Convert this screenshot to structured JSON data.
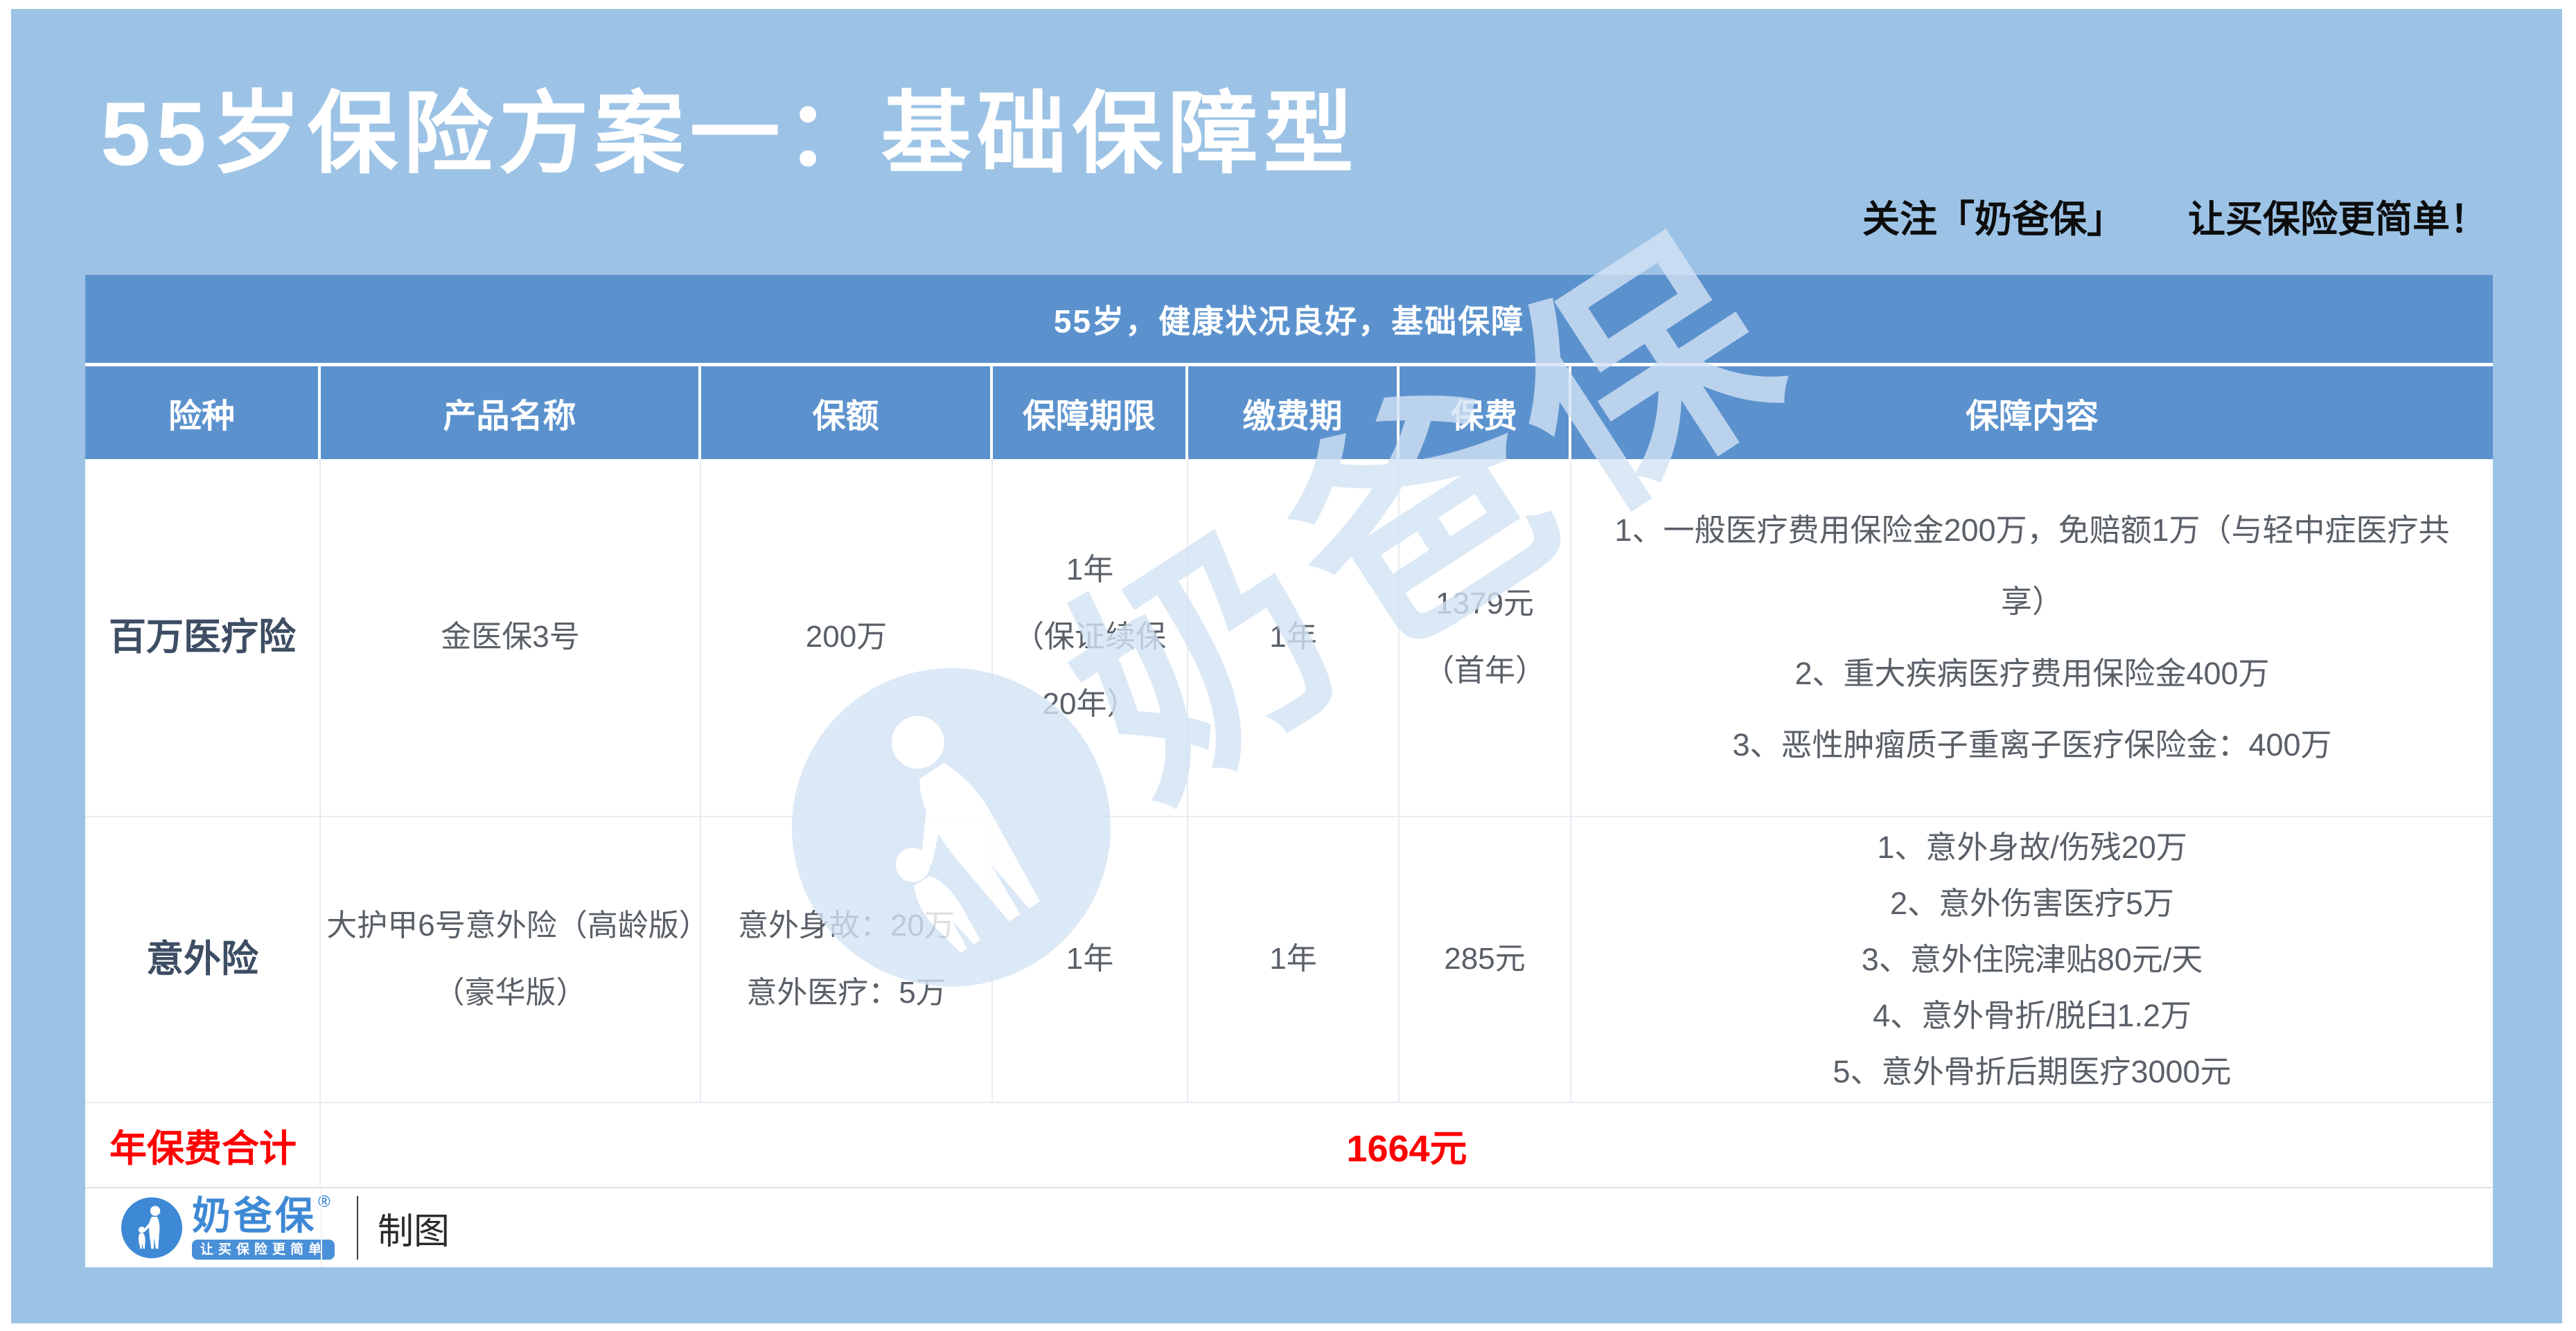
{
  "page": {
    "title": "55岁保险方案一：基础保障型",
    "tagline_left": "关注「奶爸保」",
    "tagline_right": "让买保险更简单！"
  },
  "colors": {
    "panel_blue": "#9cc3e6",
    "header_blue": "#5b92ce",
    "body_text": "#5a6067",
    "row_label": "#3d4d63",
    "total_red": "#fe0000",
    "logo_blue": "#3e89d5"
  },
  "table": {
    "merged_header": "55岁，健康状况良好，基础保障",
    "columns": [
      "险种",
      "产品名称",
      "保额",
      "保障期限",
      "缴费期",
      "保费",
      "保障内容"
    ],
    "rows": [
      {
        "type": "百万医疗险",
        "product": "金医保3号",
        "amount_lines": [
          "200万"
        ],
        "term_lines": [
          "1年",
          "（保证续保",
          "20年）"
        ],
        "pay_period": "1年",
        "premium_lines": [
          "1379元",
          "（首年）"
        ],
        "coverage_lines": [
          "1、一般医疗费用保险金200万，免赔额1万（与轻中症医疗共享）",
          "2、重大疾病医疗费用保险金400万",
          "3、恶性肿瘤质子重离子医疗保险金：400万"
        ]
      },
      {
        "type": "意外险",
        "product": "大护甲6号意外险（高龄版）（豪华版）",
        "amount_lines": [
          "意外身故：20万",
          "意外医疗：5万"
        ],
        "term_lines": [
          "1年"
        ],
        "pay_period": "1年",
        "premium_lines": [
          "285元"
        ],
        "coverage_lines": [
          "1、意外身故/伤残20万",
          "2、意外伤害医疗5万",
          "3、意外住院津贴80元/天",
          "4、意外骨折/脱臼1.2万",
          "5、意外骨折后期医疗3000元"
        ]
      }
    ],
    "total_label": "年保费合计",
    "total_value": "1664元"
  },
  "footer": {
    "logo_text": "奶爸保",
    "logo_reg": "®",
    "logo_slogan": "让买保险更简单",
    "credit": "制图"
  },
  "watermark": {
    "text": "奶爸保"
  }
}
